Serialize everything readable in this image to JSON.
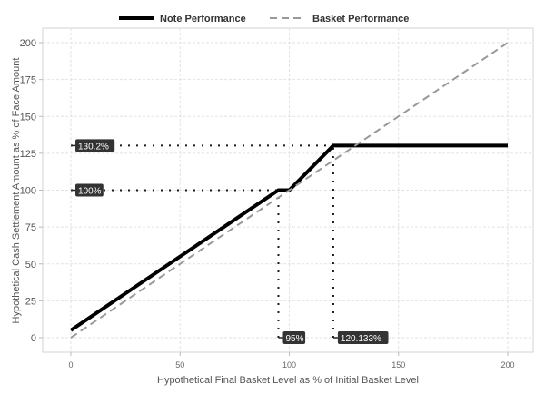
{
  "chart_data": {
    "type": "line",
    "xlabel": "Hypothetical Final Basket Level as % of Initial Basket Level",
    "ylabel": "Hypothetical Cash Settlement Amount as % of Face Amount",
    "xlim": [
      0,
      200
    ],
    "ylim": [
      0,
      200
    ],
    "xticks": [
      0,
      50,
      100,
      150,
      200
    ],
    "yticks": [
      0,
      25,
      50,
      75,
      100,
      125,
      150,
      175,
      200
    ],
    "grid": true,
    "legend_position": "top",
    "series": [
      {
        "name": "Note Performance",
        "style": "solid",
        "color": "#000000",
        "x": [
          0,
          95,
          100,
          120.133,
          200
        ],
        "y": [
          5,
          100,
          100,
          130.2,
          130.2
        ]
      },
      {
        "name": "Basket Performance",
        "style": "dashed",
        "color": "#999999",
        "x": [
          0,
          200
        ],
        "y": [
          0,
          200
        ]
      }
    ],
    "annotations": [
      {
        "label": "130.2%",
        "axis": "y",
        "value": 130.2,
        "x_end": 120.133
      },
      {
        "label": "100%",
        "axis": "y",
        "value": 100,
        "x_end": 95
      },
      {
        "label": "95%",
        "axis": "x",
        "value": 95,
        "y_end": 100
      },
      {
        "label": "120.133%",
        "axis": "x",
        "value": 120.133,
        "y_end": 130.2
      }
    ]
  }
}
